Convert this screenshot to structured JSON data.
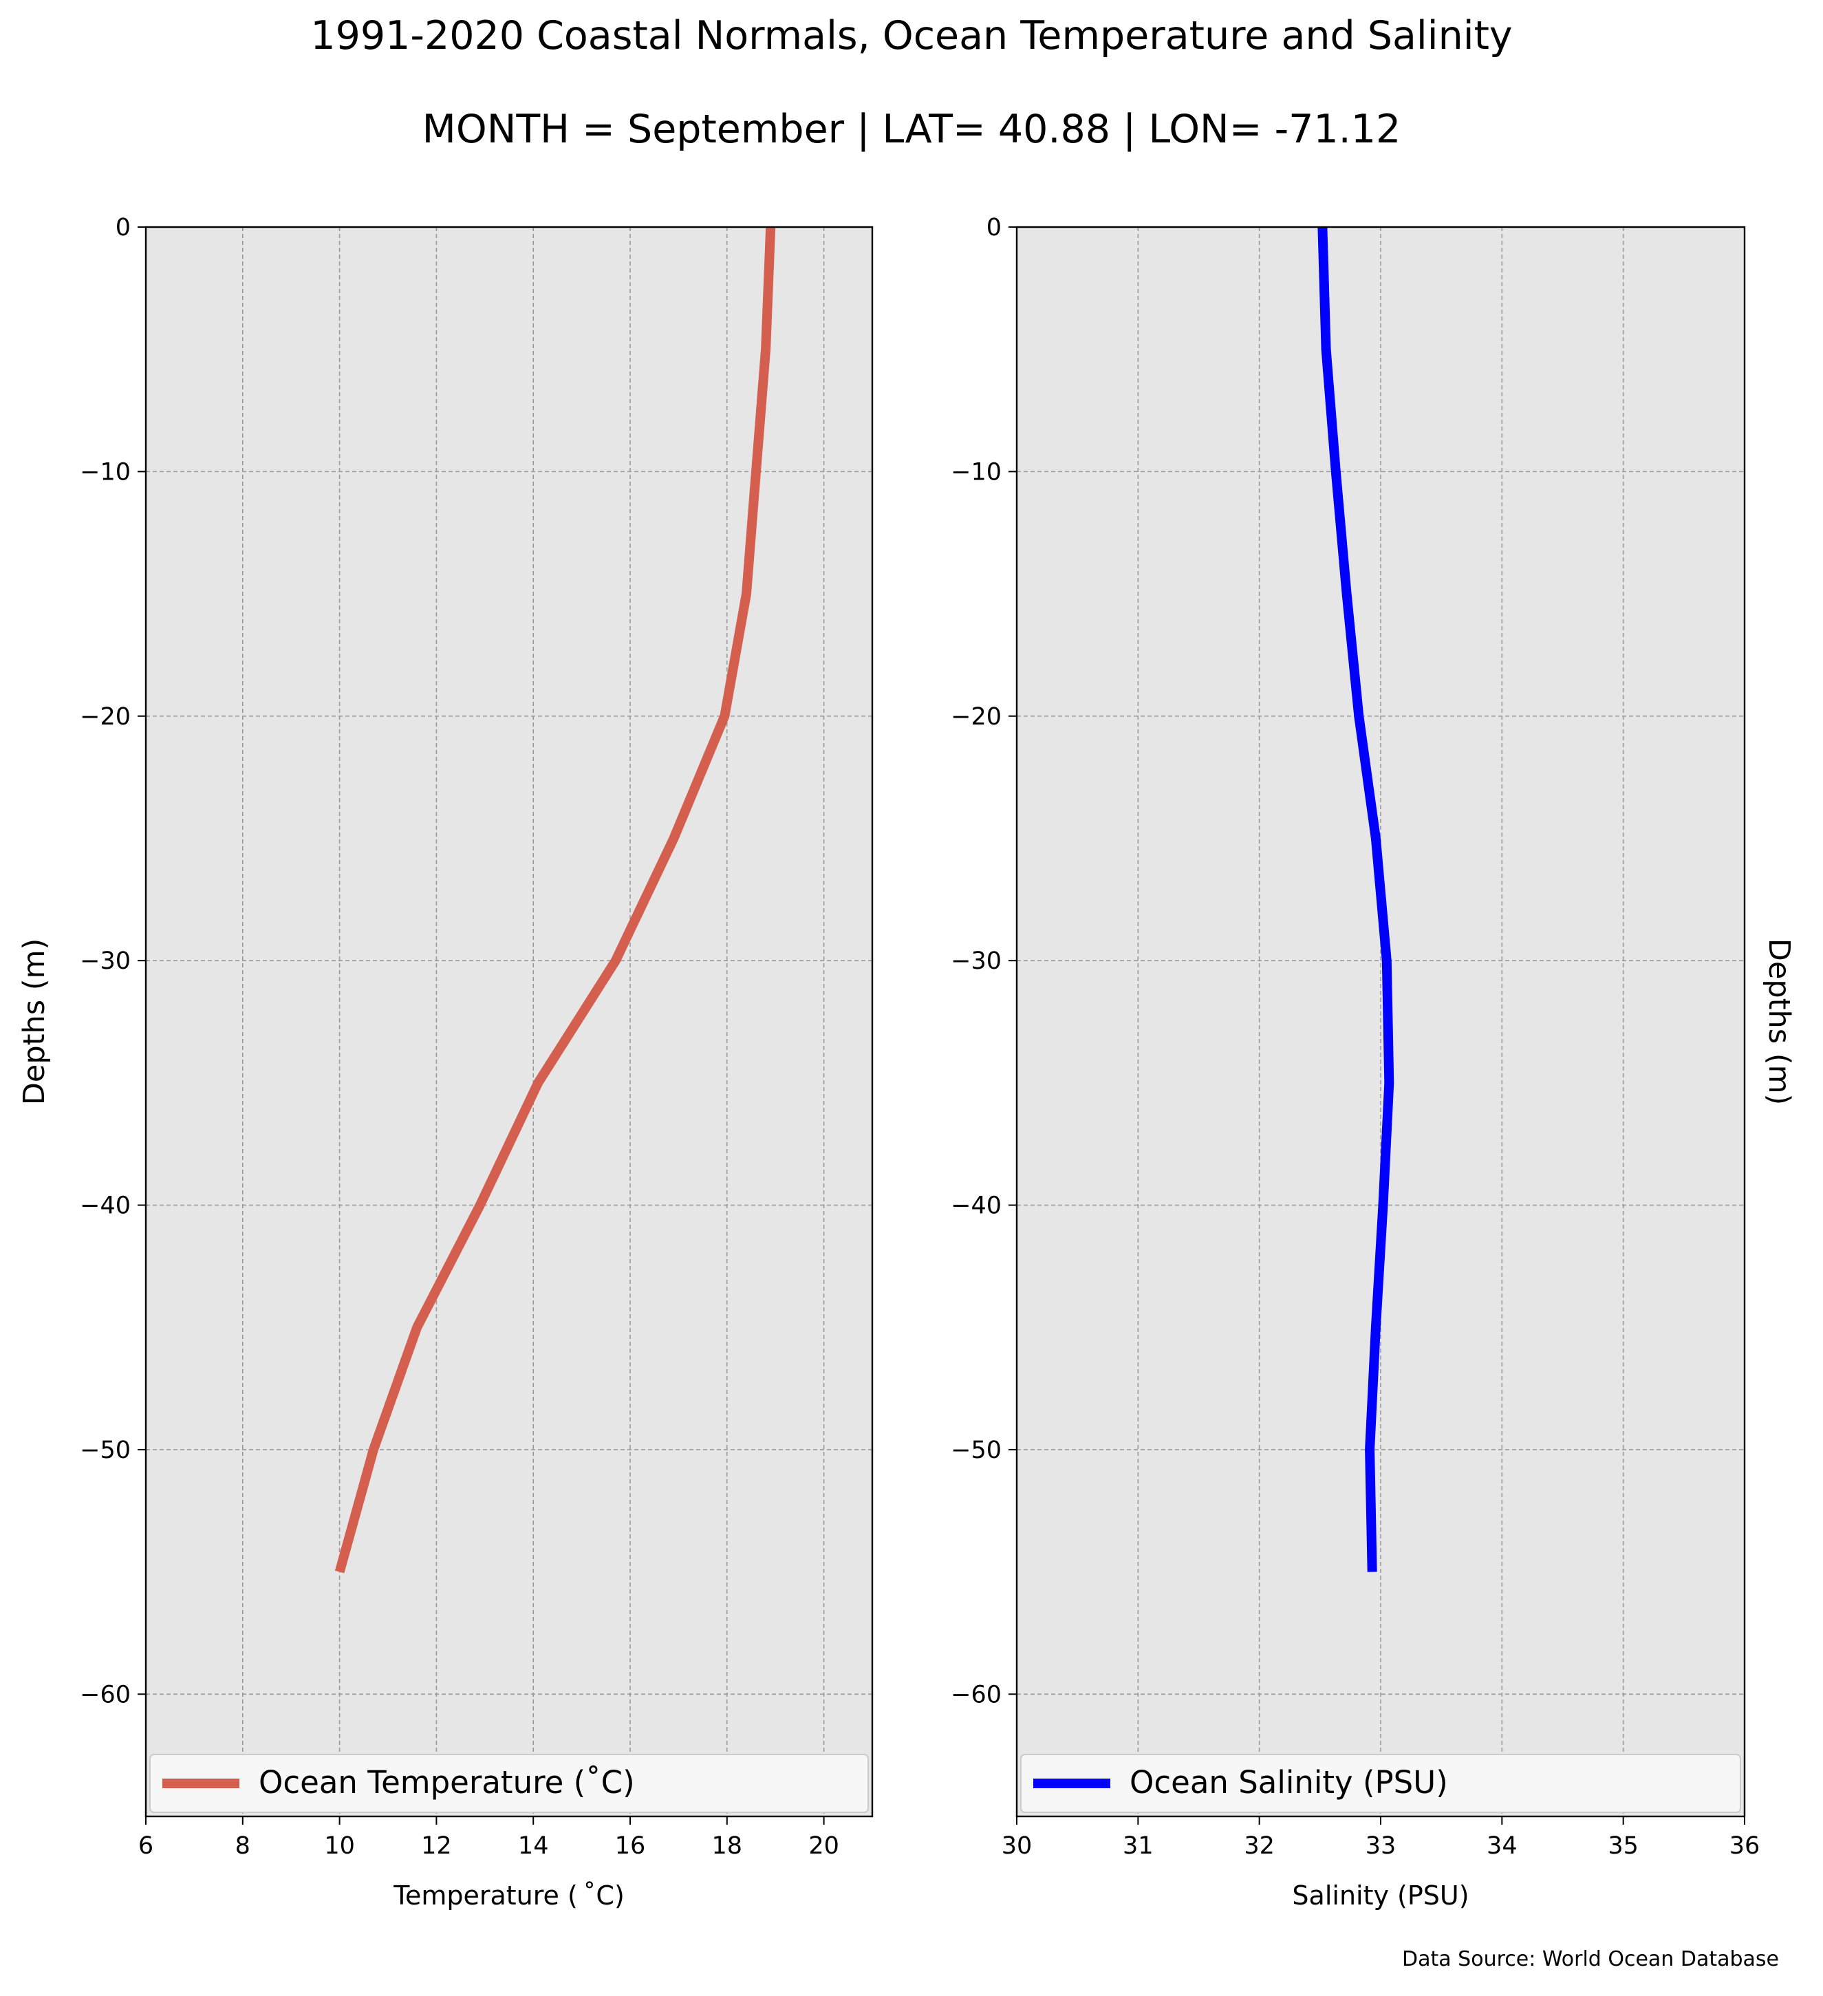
{
  "figure": {
    "title": "1991-2020 Coastal Normals, Ocean Temperature and Salinity",
    "subtitle": "MONTH = September | LAT= 40.88 | LON= -71.12",
    "footer": "Data Source: World Ocean Database"
  },
  "colors": {
    "panel_background": "#e6e6e6",
    "grid": "#9a9a9a",
    "temperature_line": "#d45f4e",
    "salinity_line": "#0000ff"
  },
  "chart_data": [
    {
      "type": "line",
      "orientation": "depth-profile",
      "xlabel": "Temperature ($^\\circ$C)",
      "xlabel_display": "Temperature ( ˚C)",
      "ylabel": "Depths (m)",
      "ylabel_side": "left",
      "xlim": [
        6,
        21
      ],
      "ylim": [
        -65,
        0
      ],
      "xticks": [
        6,
        8,
        10,
        12,
        14,
        16,
        18,
        20
      ],
      "yticks": [
        0,
        -10,
        -20,
        -30,
        -40,
        -50,
        -60
      ],
      "ytick_labels": [
        "0",
        "−10",
        "−20",
        "−30",
        "−40",
        "−50",
        "−60"
      ],
      "grid": true,
      "legend_placement": "lower-center",
      "series": [
        {
          "name": "Ocean Temperature ($^\\circ$C)",
          "name_display": "Ocean Temperature (˚C)",
          "color": "#d45f4e",
          "x": [
            18.9,
            18.8,
            18.6,
            18.4,
            17.95,
            16.9,
            15.7,
            14.1,
            12.9,
            11.6,
            10.7,
            10.0
          ],
          "y": [
            0,
            -5,
            -10,
            -15,
            -20,
            -25,
            -30,
            -35,
            -40,
            -45,
            -50,
            -55
          ]
        }
      ]
    },
    {
      "type": "line",
      "orientation": "depth-profile",
      "xlabel": "Salinity (PSU)",
      "ylabel": "Depths (m)",
      "ylabel_side": "right",
      "xlim": [
        30,
        36
      ],
      "ylim": [
        -65,
        0
      ],
      "xticks": [
        30,
        31,
        32,
        33,
        34,
        35,
        36
      ],
      "yticks": [
        0,
        -10,
        -20,
        -30,
        -40,
        -50,
        -60
      ],
      "ytick_labels": [
        "0",
        "−10",
        "−20",
        "−30",
        "−40",
        "−50",
        "−60"
      ],
      "grid": true,
      "legend_placement": "lower-center",
      "series": [
        {
          "name": "Ocean Salinity (PSU)",
          "color": "#0000ff",
          "x": [
            32.52,
            32.55,
            32.63,
            32.72,
            32.82,
            32.96,
            33.05,
            33.07,
            33.02,
            32.96,
            32.91,
            32.93
          ],
          "y": [
            0,
            -5,
            -10,
            -15,
            -20,
            -25,
            -30,
            -35,
            -40,
            -45,
            -50,
            -55
          ]
        }
      ]
    }
  ]
}
